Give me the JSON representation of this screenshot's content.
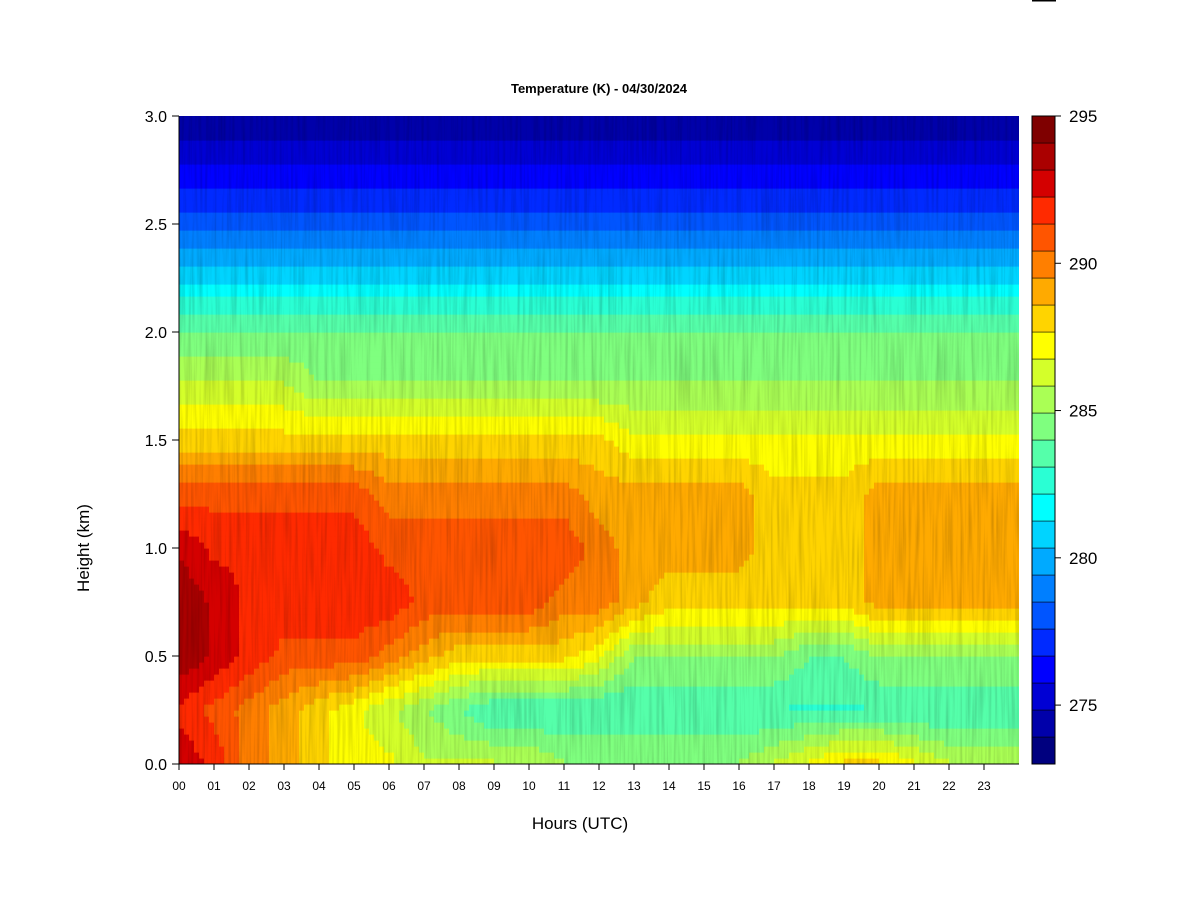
{
  "chart_data": {
    "type": "heatmap",
    "title": "Temperature (K) - 04/30/2024",
    "xlabel": "Hours (UTC)",
    "ylabel": "Height (km)",
    "x_ticks": [
      "00",
      "01",
      "02",
      "03",
      "04",
      "05",
      "06",
      "07",
      "08",
      "09",
      "10",
      "11",
      "12",
      "13",
      "14",
      "15",
      "16",
      "17",
      "18",
      "19",
      "20",
      "21",
      "22",
      "23"
    ],
    "y_ticks": [
      "0.0",
      "0.5",
      "1.0",
      "1.5",
      "2.0",
      "2.5",
      "3.0"
    ],
    "xlim": [
      0,
      24
    ],
    "ylim": [
      0,
      3.0
    ],
    "x": [
      0,
      1,
      2,
      3,
      4,
      5,
      6,
      7,
      8,
      9,
      10,
      11,
      12,
      13,
      14,
      15,
      16,
      17,
      18,
      19,
      20,
      21,
      22,
      23
    ],
    "y": [
      0.0,
      0.25,
      0.5,
      0.75,
      1.0,
      1.25,
      1.5,
      1.75,
      2.0,
      2.25,
      2.5,
      2.75,
      3.0
    ],
    "values": [
      [
        293,
        292,
        290,
        289,
        288,
        287,
        287,
        286,
        286,
        286,
        286,
        285,
        285,
        285,
        285,
        285,
        285,
        286,
        287,
        288,
        288,
        287,
        286,
        286
      ],
      [
        292,
        291,
        290,
        289,
        288,
        287,
        286,
        285,
        284,
        283,
        283,
        283,
        283,
        283,
        283,
        283,
        283,
        283,
        283,
        283,
        283,
        283,
        283,
        283
      ],
      [
        294,
        293,
        292,
        291,
        291,
        291,
        290,
        289,
        288,
        288,
        288,
        288,
        287,
        285,
        285,
        285,
        285,
        285,
        284,
        284,
        285,
        285,
        285,
        285
      ],
      [
        294,
        293,
        292,
        292,
        292,
        292,
        292,
        291,
        291,
        291,
        291,
        290,
        290,
        289,
        288,
        288,
        288,
        288,
        288,
        288,
        289,
        289,
        289,
        289
      ],
      [
        293,
        292,
        292,
        292,
        292,
        292,
        291,
        291,
        291,
        291,
        291,
        291,
        290,
        289,
        289,
        289,
        289,
        288,
        288,
        288,
        289,
        289,
        289,
        289
      ],
      [
        291,
        291,
        291,
        291,
        291,
        291,
        290,
        290,
        290,
        290,
        290,
        290,
        289,
        289,
        289,
        289,
        289,
        288,
        288,
        288,
        289,
        289,
        289,
        289
      ],
      [
        288,
        288,
        288,
        288,
        288,
        288,
        288,
        288,
        288,
        288,
        288,
        288,
        288,
        287,
        287,
        287,
        287,
        287,
        287,
        287,
        287,
        287,
        287,
        287
      ],
      [
        286,
        286,
        286,
        286,
        285,
        285,
        285,
        285,
        285,
        285,
        285,
        285,
        285,
        285,
        285,
        285,
        285,
        285,
        285,
        285,
        285,
        285,
        285,
        285
      ],
      [
        284,
        284,
        284,
        284,
        284,
        284,
        284,
        284,
        284,
        284,
        284,
        284,
        284,
        284,
        284,
        284,
        284,
        284,
        284,
        284,
        284,
        284,
        284,
        284
      ],
      [
        281,
        281,
        281,
        281,
        281,
        281,
        281,
        281,
        281,
        281,
        281,
        281,
        281,
        281,
        281,
        281,
        281,
        281,
        281,
        281,
        281,
        281,
        281,
        281
      ],
      [
        278,
        278,
        278,
        278,
        278,
        278,
        278,
        278,
        278,
        278,
        278,
        278,
        278,
        278,
        278,
        278,
        278,
        278,
        278,
        278,
        278,
        278,
        278,
        278
      ],
      [
        276,
        276,
        276,
        276,
        276,
        276,
        276,
        276,
        276,
        276,
        276,
        276,
        276,
        276,
        276,
        276,
        276,
        276,
        276,
        276,
        276,
        276,
        276,
        276
      ],
      [
        274,
        274,
        274,
        274,
        274,
        274,
        274,
        274,
        274,
        274,
        274,
        274,
        274,
        274,
        274,
        274,
        274,
        274,
        274,
        274,
        274,
        274,
        274,
        274
      ]
    ],
    "colorbar": {
      "min": 273,
      "max": 295,
      "ticks": [
        "275",
        "280",
        "285",
        "290",
        "295"
      ],
      "colors": [
        "#00007F",
        "#0000AA",
        "#0000D4",
        "#0000FF",
        "#002AFF",
        "#0055FF",
        "#007FFF",
        "#00AAFF",
        "#00D4FF",
        "#00FFFF",
        "#2AFFD4",
        "#55FFAA",
        "#7FFF7F",
        "#AAFF55",
        "#D4FF2A",
        "#FFFF00",
        "#FFD400",
        "#FFAA00",
        "#FF7F00",
        "#FF5500",
        "#FF2A00",
        "#D40000",
        "#AA0000",
        "#7F0000"
      ]
    },
    "grid": false,
    "legend": "colorbar-right"
  }
}
